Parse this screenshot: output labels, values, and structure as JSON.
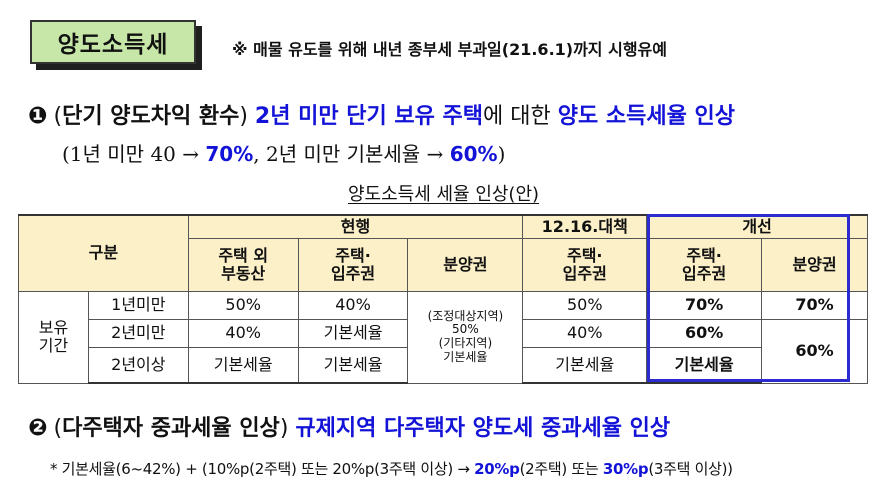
{
  "badge": "양도소득세",
  "note": "※ 매물 유도를 위해 내년 종부세 부과일(21.6.1)까지 시행유예",
  "item1": {
    "marker": "❶",
    "paren_open": "(",
    "paren_label": "단기 양도차익 환수",
    "paren_close": ")",
    "blue_text": "2년 미만 단기 보유 주택",
    "mid_text": "에 대한",
    "blue_tail": "양도 소득세율 인상",
    "detail_a": "(1년 미만 40 →",
    "detail_b": "70%",
    "detail_c": ", 2년 미만 기본세율 →",
    "detail_d": "60%",
    "detail_e": ")"
  },
  "table": {
    "title": "양도소득세 세율 인상(안)",
    "header": {
      "category": "구분",
      "current": "현행",
      "measure": "12.16.대책",
      "improved": "개선",
      "col_nonhouse_1": "주택 외",
      "col_nonhouse_2": "부동산",
      "col_house_1": "주택·",
      "col_house_2": "입주권",
      "col_presale": "분양권",
      "col_measure_1": "주택·",
      "col_measure_2": "입주권",
      "col_improved_1": "주택·",
      "col_improved_2": "입주권",
      "col_improved_presale": "분양권"
    },
    "period_1": "보유",
    "period_2": "기간",
    "rows": [
      {
        "label": "1년미만",
        "nonhouse": "50%",
        "house": "40%",
        "measure": "50%",
        "improved": "70%",
        "improved_presale": "70%"
      },
      {
        "label": "2년미만",
        "nonhouse": "40%",
        "house": "기본세율",
        "measure": "40%",
        "improved": "60%"
      },
      {
        "label": "2년이상",
        "nonhouse": "기본세율",
        "house": "기본세율",
        "measure": "기본세율",
        "improved": "기본세율"
      }
    ],
    "presale_current": {
      "l1": "(조정대상지역)",
      "l2": "50%",
      "l3": "(기타지역)",
      "l4": "기본세율"
    },
    "improved_presale_merged": "60%"
  },
  "item2": {
    "marker": "❷",
    "paren_open": "(",
    "paren_label": "다주택자 중과세율 인상",
    "paren_close": ")",
    "blue_text": "규제지역 다주택자 양도세 중과세율 인상"
  },
  "footnote": {
    "a": "* 기본세율(6~42%) + (10%p(2주택) 또는 20%p(3주택 이상) →",
    "b": "20%p",
    "c": "(2주택) 또는",
    "d": "30%p",
    "e": "(3주택 이상))"
  },
  "colors": {
    "badge_bg": "#c6e7a8",
    "header_bg": "#fbf0c8",
    "accent_blue": "#1313d8",
    "box_blue": "#2b2bd0"
  }
}
